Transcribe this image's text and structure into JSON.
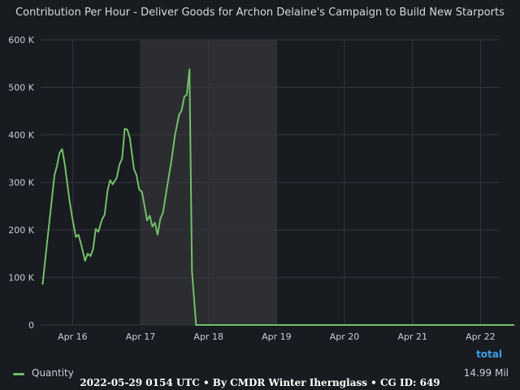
{
  "chart_data": {
    "type": "line",
    "title": "Contribution Per Hour - Deliver Goods for Archon Delaine's Campaign to Build New Starports",
    "xlabel": "",
    "ylabel": "",
    "x_ticks": [
      "Apr 16",
      "Apr 17",
      "Apr 18",
      "Apr 19",
      "Apr 20",
      "Apr 21",
      "Apr 22"
    ],
    "y_ticks": [
      "0",
      "100 K",
      "200 K",
      "300 K",
      "400 K",
      "500 K",
      "600 K"
    ],
    "ylim": [
      0,
      600000
    ],
    "xlim_days": [
      15.53,
      22.27
    ],
    "grid": true,
    "shaded_ranges": [
      {
        "from": "Apr 17 00:00",
        "to": "Apr 18 00:00"
      },
      {
        "from": "Apr 18 00:00",
        "to": "Apr 19 00:00"
      }
    ],
    "series": [
      {
        "name": "Quantity",
        "color": "#73bf69",
        "points": [
          [
            "Apr 15 13:25",
            85000
          ],
          [
            "Apr 15 14:50",
            165000
          ],
          [
            "Apr 15 16:20",
            245000
          ],
          [
            "Apr 15 17:35",
            315000
          ],
          [
            "Apr 15 18:30",
            335000
          ],
          [
            "Apr 15 19:25",
            362000
          ],
          [
            "Apr 15 20:20",
            370000
          ],
          [
            "Apr 15 21:20",
            335000
          ],
          [
            "Apr 15 22:50",
            265000
          ],
          [
            "Apr 15 23:45",
            230000
          ],
          [
            "Apr 16 01:10",
            185000
          ],
          [
            "Apr 16 02:05",
            190000
          ],
          [
            "Apr 16 03:05",
            168000
          ],
          [
            "Apr 16 04:25",
            135000
          ],
          [
            "Apr 16 05:20",
            150000
          ],
          [
            "Apr 16 06:20",
            145000
          ],
          [
            "Apr 16 07:15",
            160000
          ],
          [
            "Apr 16 08:10",
            202000
          ],
          [
            "Apr 16 09:05",
            196000
          ],
          [
            "Apr 16 10:25",
            222000
          ],
          [
            "Apr 16 11:20",
            232000
          ],
          [
            "Apr 16 12:20",
            282000
          ],
          [
            "Apr 16 13:15",
            305000
          ],
          [
            "Apr 16 14:10",
            296000
          ],
          [
            "Apr 16 15:35",
            310000
          ],
          [
            "Apr 16 16:35",
            338000
          ],
          [
            "Apr 16 17:30",
            350000
          ],
          [
            "Apr 16 18:25",
            413000
          ],
          [
            "Apr 16 19:20",
            411000
          ],
          [
            "Apr 16 20:15",
            393000
          ],
          [
            "Apr 16 21:40",
            328000
          ],
          [
            "Apr 16 22:35",
            315000
          ],
          [
            "Apr 16 23:30",
            285000
          ],
          [
            "Apr 17 00:30",
            280000
          ],
          [
            "Apr 17 01:25",
            250000
          ],
          [
            "Apr 17 02:20",
            220000
          ],
          [
            "Apr 17 03:15",
            230000
          ],
          [
            "Apr 17 04:10",
            207000
          ],
          [
            "Apr 17 05:05",
            215000
          ],
          [
            "Apr 17 06:00",
            190000
          ],
          [
            "Apr 17 07:00",
            224000
          ],
          [
            "Apr 17 07:55",
            236000
          ],
          [
            "Apr 17 09:20",
            290000
          ],
          [
            "Apr 17 10:45",
            340000
          ],
          [
            "Apr 17 12:10",
            400000
          ],
          [
            "Apr 17 13:35",
            442000
          ],
          [
            "Apr 17 14:30",
            452000
          ],
          [
            "Apr 17 15:25",
            480000
          ],
          [
            "Apr 17 16:20",
            485000
          ],
          [
            "Apr 17 17:15",
            538000
          ],
          [
            "Apr 17 18:10",
            113000
          ],
          [
            "Apr 17 19:35",
            0
          ],
          [
            "Apr 22 12:00",
            0
          ]
        ]
      }
    ],
    "legend": {
      "placement": "bottom",
      "columns": [
        "total"
      ],
      "entries": [
        {
          "name": "Quantity",
          "total": "14.99 Mil"
        }
      ]
    }
  },
  "legend_header": "total",
  "footer": "2022-05-29 0154 UTC • By CMDR Winter Iherngla ss • CG ID: 649"
}
